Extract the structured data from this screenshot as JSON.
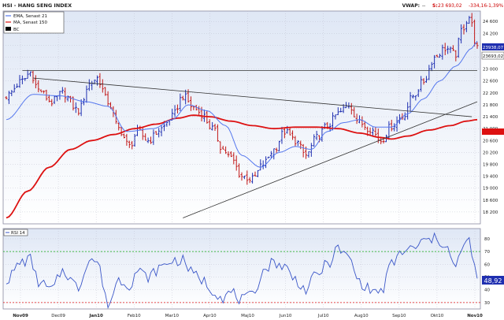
{
  "header": {
    "title": "HSI - HANG SENG INDEX",
    "vwap_label": "VWAP:",
    "vwap_value": "--",
    "last_label": "S:",
    "last_value": "23 693,02",
    "change": "-334,16",
    "change_pct": "-1,39%"
  },
  "price_legend": [
    {
      "label": "EMA, Senast 21",
      "color": "#5577ee",
      "style": "line"
    },
    {
      "label": "MA, Senast 150",
      "color": "#dd1111",
      "style": "line"
    },
    {
      "label": "BC",
      "color": "#000000",
      "style": "box"
    }
  ],
  "rsi_legend": {
    "label": "RSI 14"
  },
  "price_labels": {
    "ema": "23938,07",
    "close": "23693,02",
    "ma": ""
  },
  "rsi_value_label": "48,92",
  "colors": {
    "background": "#ffffff",
    "plot_bg_top": "#dfe7f5",
    "plot_bg_bottom": "#ffffff",
    "grid": "#b8b8c8",
    "up_bar": "#1f2fb0",
    "down_bar": "#c21818",
    "ema": "#5577ee",
    "ma": "#dd1111",
    "trend": "#333333",
    "rsi_line": "#3a56c8",
    "rsi_upper": "#11aa11",
    "rsi_lower": "#dd1111",
    "header_red": "#cc0000"
  },
  "chart_data": [
    {
      "type": "ohlc",
      "title": "HSI - HANG SENG INDEX",
      "y_ticks": [
        18200,
        18600,
        19000,
        19400,
        19800,
        20200,
        20600,
        21000,
        21400,
        21800,
        22200,
        22600,
        23000,
        23400,
        23800,
        24200,
        24600
      ],
      "ylim": [
        17800,
        24950
      ],
      "x_labels": [
        "Nov09",
        "Dec09",
        "Jan10",
        "Feb10",
        "Mar10",
        "Apr10",
        "Maj10",
        "Jun10",
        "Jul10",
        "Aug10",
        "Sep10",
        "Okt10",
        "Nov10"
      ],
      "x_bold": [
        "Nov09",
        "Jan10",
        "Nov10"
      ],
      "anchors": [
        [
          0,
          22100
        ],
        [
          6,
          22600
        ],
        [
          9,
          22900
        ],
        [
          12,
          22300
        ],
        [
          17,
          21900
        ],
        [
          21,
          22200
        ],
        [
          27,
          21600
        ],
        [
          31,
          22500
        ],
        [
          34,
          22700
        ],
        [
          38,
          21900
        ],
        [
          42,
          21000
        ],
        [
          46,
          20400
        ],
        [
          49,
          20900
        ],
        [
          53,
          20600
        ],
        [
          58,
          21000
        ],
        [
          62,
          21400
        ],
        [
          66,
          22100
        ],
        [
          70,
          21700
        ],
        [
          73,
          21500
        ],
        [
          77,
          21000
        ],
        [
          81,
          20300
        ],
        [
          84,
          20000
        ],
        [
          88,
          19400
        ],
        [
          92,
          19300
        ],
        [
          96,
          19800
        ],
        [
          100,
          20300
        ],
        [
          104,
          20900
        ],
        [
          108,
          20600
        ],
        [
          112,
          20100
        ],
        [
          116,
          20700
        ],
        [
          120,
          21100
        ],
        [
          124,
          21500
        ],
        [
          128,
          21800
        ],
        [
          132,
          21200
        ],
        [
          136,
          21000
        ],
        [
          140,
          20600
        ],
        [
          144,
          21100
        ],
        [
          148,
          21400
        ],
        [
          152,
          22100
        ],
        [
          156,
          22600
        ],
        [
          160,
          23400
        ],
        [
          164,
          23700
        ],
        [
          168,
          23500
        ],
        [
          170,
          24300
        ],
        [
          173,
          24750
        ],
        [
          176,
          23700
        ]
      ],
      "ema": [
        [
          0,
          21300
        ],
        [
          10,
          22150
        ],
        [
          20,
          22100
        ],
        [
          30,
          21900
        ],
        [
          38,
          21750
        ],
        [
          45,
          20900
        ],
        [
          55,
          21000
        ],
        [
          62,
          21300
        ],
        [
          68,
          21800
        ],
        [
          75,
          21600
        ],
        [
          82,
          21100
        ],
        [
          88,
          20100
        ],
        [
          95,
          19700
        ],
        [
          102,
          20200
        ],
        [
          108,
          20400
        ],
        [
          114,
          20300
        ],
        [
          120,
          20900
        ],
        [
          126,
          21200
        ],
        [
          132,
          21300
        ],
        [
          138,
          21050
        ],
        [
          144,
          21050
        ],
        [
          150,
          21500
        ],
        [
          156,
          22000
        ],
        [
          162,
          22600
        ],
        [
          168,
          23100
        ],
        [
          174,
          23700
        ],
        [
          176,
          23938
        ]
      ],
      "ma": [
        [
          0,
          18000
        ],
        [
          8,
          18900
        ],
        [
          16,
          19700
        ],
        [
          24,
          20300
        ],
        [
          32,
          20600
        ],
        [
          40,
          20800
        ],
        [
          48,
          21000
        ],
        [
          56,
          21150
        ],
        [
          64,
          21350
        ],
        [
          70,
          21450
        ],
        [
          76,
          21400
        ],
        [
          84,
          21250
        ],
        [
          92,
          21100
        ],
        [
          100,
          21000
        ],
        [
          108,
          21050
        ],
        [
          116,
          21050
        ],
        [
          124,
          21000
        ],
        [
          132,
          20850
        ],
        [
          140,
          20700
        ],
        [
          144,
          20650
        ],
        [
          150,
          20750
        ],
        [
          158,
          20950
        ],
        [
          166,
          21100
        ],
        [
          172,
          21250
        ],
        [
          176,
          21300
        ]
      ],
      "trendlines": [
        {
          "from": [
            10,
            22700
          ],
          "to": [
            174,
            21400
          ]
        },
        {
          "from": [
            66,
            18000
          ],
          "to": [
            176,
            21900
          ]
        }
      ],
      "hlines": [
        22950
      ]
    },
    {
      "type": "line",
      "title": "RSI 14",
      "y_ticks": [
        30,
        40,
        50,
        60,
        70,
        80
      ],
      "ylim": [
        25,
        88
      ],
      "levels": [
        70,
        30
      ],
      "anchors": [
        [
          0,
          48
        ],
        [
          6,
          62
        ],
        [
          9,
          64
        ],
        [
          12,
          46
        ],
        [
          17,
          40
        ],
        [
          21,
          55
        ],
        [
          27,
          42
        ],
        [
          31,
          65
        ],
        [
          34,
          62
        ],
        [
          38,
          28
        ],
        [
          42,
          48
        ],
        [
          46,
          44
        ],
        [
          49,
          55
        ],
        [
          53,
          50
        ],
        [
          58,
          58
        ],
        [
          62,
          63
        ],
        [
          66,
          63
        ],
        [
          70,
          52
        ],
        [
          73,
          48
        ],
        [
          77,
          40
        ],
        [
          81,
          34
        ],
        [
          84,
          38
        ],
        [
          88,
          32
        ],
        [
          92,
          35
        ],
        [
          96,
          55
        ],
        [
          100,
          62
        ],
        [
          104,
          58
        ],
        [
          108,
          48
        ],
        [
          112,
          40
        ],
        [
          116,
          52
        ],
        [
          120,
          60
        ],
        [
          124,
          72
        ],
        [
          128,
          65
        ],
        [
          132,
          46
        ],
        [
          136,
          40
        ],
        [
          140,
          38
        ],
        [
          144,
          60
        ],
        [
          148,
          70
        ],
        [
          152,
          72
        ],
        [
          156,
          78
        ],
        [
          160,
          80
        ],
        [
          164,
          76
        ],
        [
          168,
          56
        ],
        [
          170,
          72
        ],
        [
          173,
          78
        ],
        [
          176,
          49
        ]
      ],
      "value": 48.92
    }
  ]
}
